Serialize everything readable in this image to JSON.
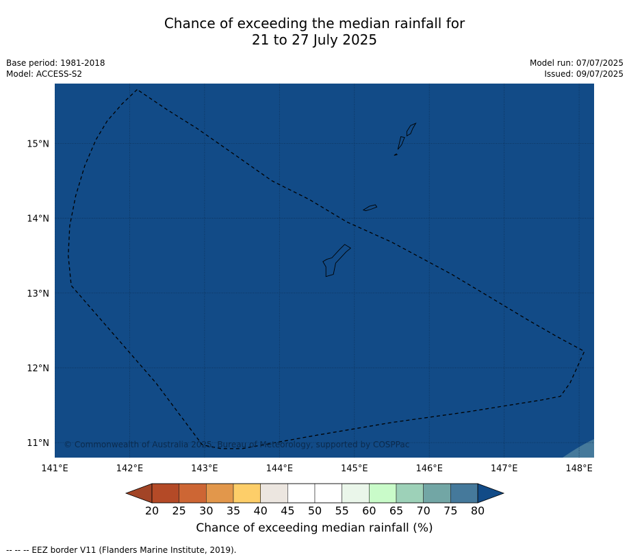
{
  "title": {
    "line1": "Chance of exceeding the median rainfall for",
    "line2": "21 to 27 July 2025"
  },
  "meta_left": {
    "base_period": "Base period: 1981-2018",
    "model": "Model: ACCESS-S2"
  },
  "meta_right": {
    "model_run": "Model run: 07/07/2025",
    "issued": "Issued: 09/07/2025"
  },
  "map": {
    "lon_range": [
      141.0,
      148.2
    ],
    "lat_range": [
      10.8,
      15.8
    ],
    "lon_ticks": [
      {
        "value": 141,
        "label": "141°E"
      },
      {
        "value": 142,
        "label": "142°E"
      },
      {
        "value": 143,
        "label": "143°E"
      },
      {
        "value": 144,
        "label": "144°E"
      },
      {
        "value": 145,
        "label": "145°E"
      },
      {
        "value": 146,
        "label": "146°E"
      },
      {
        "value": 147,
        "label": "147°E"
      },
      {
        "value": 148,
        "label": "148°E"
      }
    ],
    "lat_ticks": [
      {
        "value": 11,
        "label": "11°N"
      },
      {
        "value": 12,
        "label": "12°N"
      },
      {
        "value": 13,
        "label": "13°N"
      },
      {
        "value": 14,
        "label": "14°N"
      },
      {
        "value": 15,
        "label": "15°N"
      }
    ],
    "background_category": "80",
    "background_color": "#124b87",
    "corner_patch_color": "#45799b",
    "copyright": "© Commonwealth of Australia 2025, Bureau of Meteorology, supported by COSPPac",
    "eez_border": [
      [
        142.1,
        15.72
      ],
      [
        141.9,
        15.53
      ],
      [
        141.7,
        15.3
      ],
      [
        141.55,
        15.05
      ],
      [
        141.4,
        14.7
      ],
      [
        141.28,
        14.3
      ],
      [
        141.2,
        13.9
      ],
      [
        141.18,
        13.5
      ],
      [
        141.22,
        13.1
      ],
      [
        142.35,
        11.8
      ],
      [
        142.97,
        10.97
      ],
      [
        143.22,
        10.92
      ],
      [
        143.5,
        10.92
      ],
      [
        144.5,
        11.1
      ],
      [
        145.5,
        11.27
      ],
      [
        146.5,
        11.41
      ],
      [
        147.5,
        11.57
      ],
      [
        147.75,
        11.62
      ],
      [
        147.88,
        11.8
      ],
      [
        148.07,
        12.22
      ],
      [
        147.7,
        12.42
      ],
      [
        147.3,
        12.65
      ],
      [
        146.8,
        12.95
      ],
      [
        146.3,
        13.25
      ],
      [
        145.5,
        13.68
      ],
      [
        144.9,
        13.95
      ],
      [
        144.4,
        14.25
      ],
      [
        143.9,
        14.5
      ],
      [
        143.4,
        14.85
      ],
      [
        142.9,
        15.2
      ],
      [
        142.5,
        15.45
      ],
      [
        142.1,
        15.72
      ]
    ],
    "islands": [
      {
        "name": "Guam",
        "coords": [
          [
            144.62,
            13.22
          ],
          [
            144.72,
            13.25
          ],
          [
            144.75,
            13.4
          ],
          [
            144.89,
            13.55
          ],
          [
            144.95,
            13.6
          ],
          [
            144.87,
            13.65
          ],
          [
            144.8,
            13.58
          ],
          [
            144.7,
            13.47
          ],
          [
            144.63,
            13.45
          ],
          [
            144.58,
            13.42
          ],
          [
            144.62,
            13.35
          ],
          [
            144.62,
            13.22
          ]
        ]
      },
      {
        "name": "Rota",
        "coords": [
          [
            145.12,
            14.11
          ],
          [
            145.2,
            14.16
          ],
          [
            145.28,
            14.18
          ],
          [
            145.3,
            14.15
          ],
          [
            145.22,
            14.12
          ],
          [
            145.15,
            14.1
          ],
          [
            145.12,
            14.11
          ]
        ]
      },
      {
        "name": "Tinian",
        "coords": [
          [
            145.58,
            14.92
          ],
          [
            145.63,
            14.98
          ],
          [
            145.67,
            15.08
          ],
          [
            145.62,
            15.09
          ],
          [
            145.6,
            15.0
          ],
          [
            145.58,
            14.92
          ]
        ]
      },
      {
        "name": "Saipan",
        "coords": [
          [
            145.7,
            15.1
          ],
          [
            145.75,
            15.13
          ],
          [
            145.78,
            15.2
          ],
          [
            145.82,
            15.27
          ],
          [
            145.75,
            15.24
          ],
          [
            145.7,
            15.16
          ],
          [
            145.7,
            15.1
          ]
        ]
      },
      {
        "name": "Aguijan",
        "coords": [
          [
            145.53,
            14.84
          ],
          [
            145.57,
            14.85
          ],
          [
            145.56,
            14.86
          ],
          [
            145.53,
            14.84
          ]
        ]
      }
    ]
  },
  "colorbar": {
    "title": "Chance of exceeding median rainfall (%)",
    "ticks": [
      "20",
      "25",
      "30",
      "35",
      "40",
      "45",
      "50",
      "55",
      "60",
      "65",
      "70",
      "75",
      "80"
    ],
    "below_color": "#a24426",
    "above_color": "#124b87",
    "colors": [
      "#b44a27",
      "#cd6634",
      "#e2974b",
      "#fdce69",
      "#ece6e0",
      "#ffffff",
      "#ffffff",
      "#eaf6ea",
      "#c9fbc9",
      "#9dd1b8",
      "#72a6a5",
      "#45799b"
    ]
  },
  "footnote": "--  --  -- EEZ border V11 (Flanders Marine Institute, 2019)."
}
